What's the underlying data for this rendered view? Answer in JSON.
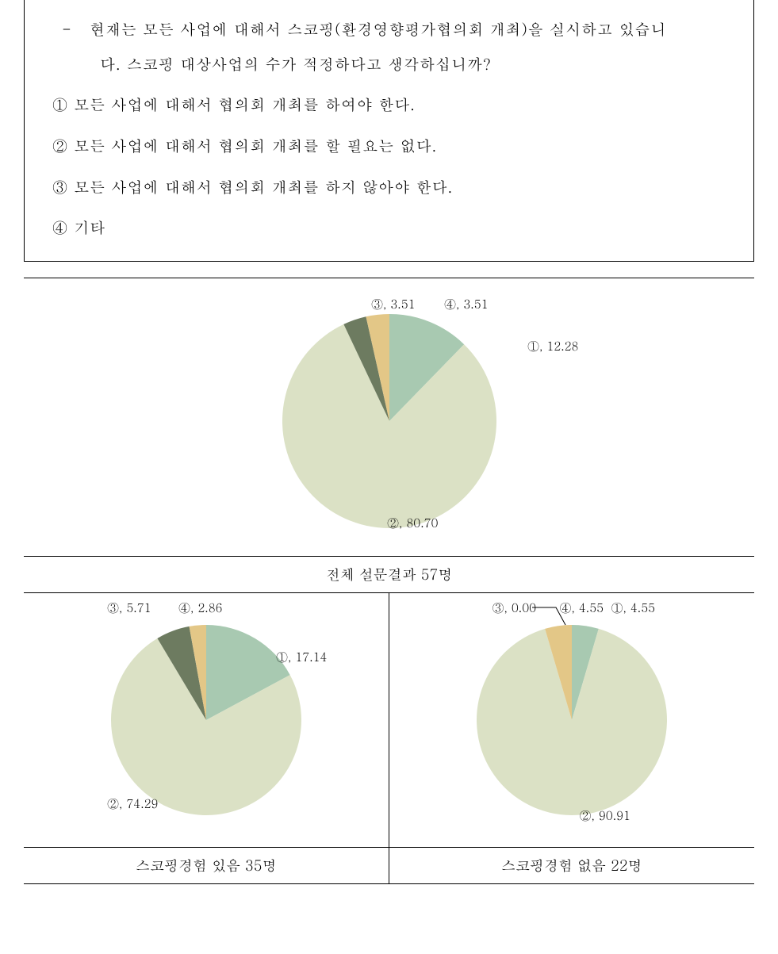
{
  "question": {
    "bullet": "-",
    "text_line1": "현재는 모든 사업에 대해서 스코핑(환경영향평가협의회 개최)을 실시하고 있습니",
    "text_line2": "다. 스코핑 대상사업의 수가 적정하다고 생각하십니까?",
    "options": [
      {
        "num": "①",
        "text": "모든 사업에 대해서 협의회 개최를 하여야 한다."
      },
      {
        "num": "②",
        "text": "모든 사업에 대해서 협의회 개최를 할 필요는 없다."
      },
      {
        "num": "③",
        "text": "모든 사업에 대해서 협의회 개최를 하지 않아야 한다."
      },
      {
        "num": "④",
        "text": "기타"
      }
    ]
  },
  "colors": {
    "slice1": "#a8c9b1",
    "slice2": "#dbe1c5",
    "slice3": "#6d7b60",
    "slice4": "#e3c787",
    "label_text": "#000000",
    "background": "#ffffff"
  },
  "chart_main": {
    "type": "pie",
    "radius": 135,
    "slices": [
      {
        "label": "①",
        "value": 12.28,
        "color": "#a8c9b1"
      },
      {
        "label": "②",
        "value": 80.7,
        "color": "#dbe1c5"
      },
      {
        "label": "③",
        "value": 3.51,
        "color": "#6d7b60"
      },
      {
        "label": "④",
        "value": 3.51,
        "color": "#e3c787"
      }
    ],
    "labels": {
      "l1": "①, 12.28",
      "l2": "②, 80.70",
      "l3": "③, 3.51",
      "l4": "④, 3.51"
    },
    "caption": "전체 설문결과 57명"
  },
  "chart_left": {
    "type": "pie",
    "radius": 120,
    "slices": [
      {
        "label": "①",
        "value": 17.14,
        "color": "#a8c9b1"
      },
      {
        "label": "②",
        "value": 74.29,
        "color": "#dbe1c5"
      },
      {
        "label": "③",
        "value": 5.71,
        "color": "#6d7b60"
      },
      {
        "label": "④",
        "value": 2.86,
        "color": "#e3c787"
      }
    ],
    "labels": {
      "l1": "①, 17.14",
      "l2": "②, 74.29",
      "l3": "③, 5.71",
      "l4": "④, 2.86"
    },
    "caption": "스코핑경험 있음 35명"
  },
  "chart_right": {
    "type": "pie",
    "radius": 120,
    "slices": [
      {
        "label": "①",
        "value": 4.55,
        "color": "#a8c9b1"
      },
      {
        "label": "②",
        "value": 90.91,
        "color": "#dbe1c5"
      },
      {
        "label": "③",
        "value": 0.0,
        "color": "#6d7b60"
      },
      {
        "label": "④",
        "value": 4.55,
        "color": "#e3c787"
      }
    ],
    "labels": {
      "l1": "①, 4.55",
      "l2": "②, 90.91",
      "l3": "③, 0.00",
      "l4": "④, 4.55"
    },
    "caption": "스코핑경험 없음 22명"
  },
  "label_fontsize": 15
}
